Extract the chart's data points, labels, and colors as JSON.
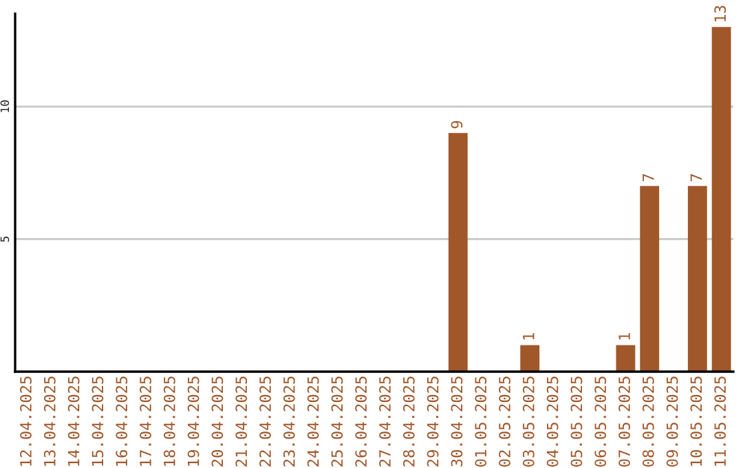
{
  "chart_data": {
    "type": "bar",
    "categories": [
      "12.04.2025",
      "13.04.2025",
      "14.04.2025",
      "15.04.2025",
      "16.04.2025",
      "17.04.2025",
      "18.04.2025",
      "19.04.2025",
      "20.04.2025",
      "21.04.2025",
      "22.04.2025",
      "23.04.2025",
      "24.04.2025",
      "25.04.2025",
      "26.04.2025",
      "27.04.2025",
      "28.04.2025",
      "29.04.2025",
      "30.04.2025",
      "01.05.2025",
      "02.05.2025",
      "03.05.2025",
      "04.05.2025",
      "05.05.2025",
      "06.05.2025",
      "07.05.2025",
      "08.05.2025",
      "09.05.2025",
      "10.05.2025",
      "11.05.2025"
    ],
    "values": [
      0,
      0,
      0,
      0,
      0,
      0,
      0,
      0,
      0,
      0,
      0,
      0,
      0,
      0,
      0,
      0,
      0,
      0,
      9,
      0,
      0,
      1,
      0,
      0,
      0,
      1,
      7,
      0,
      7,
      13
    ],
    "value_labels": [
      null,
      null,
      null,
      null,
      null,
      null,
      null,
      null,
      null,
      null,
      null,
      null,
      null,
      null,
      null,
      null,
      null,
      null,
      "9",
      null,
      null,
      "1",
      null,
      null,
      null,
      "1",
      "7",
      null,
      "7",
      "13"
    ],
    "color": "#a0572a",
    "ylim": [
      0,
      13.5
    ],
    "yticks": [
      5,
      10
    ],
    "grid": "y"
  }
}
